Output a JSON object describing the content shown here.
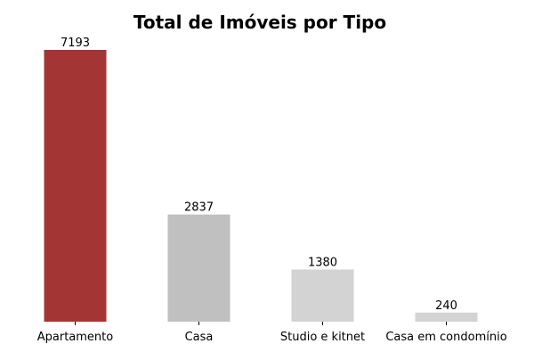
{
  "chart_data": {
    "type": "bar",
    "title": "Total de Imóveis por Tipo",
    "xlabel": "",
    "ylabel": "",
    "categories": [
      "Apartamento",
      "Casa",
      "Studio e kitnet",
      "Casa em condomínio"
    ],
    "values": [
      7193,
      2837,
      1380,
      240
    ],
    "value_labels": [
      "7193",
      "2837",
      "1380",
      "240"
    ],
    "ylim": [
      0,
      7193
    ],
    "colors": [
      "#a33535",
      "#c0c0c0",
      "#d3d3d3",
      "#d3d3d3"
    ],
    "grid": false,
    "legend": "none",
    "axes_visible": false
  }
}
